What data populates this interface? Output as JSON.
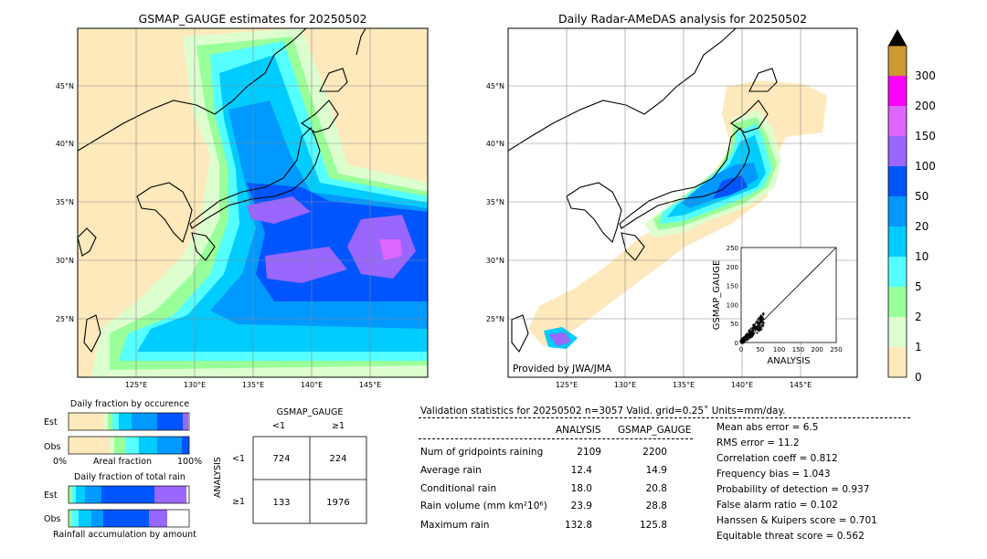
{
  "left_map": {
    "title": "GSMAP_GAUGE estimates for 20250502",
    "lat_ticks": [
      "45°N",
      "40°N",
      "35°N",
      "30°N",
      "25°N"
    ],
    "lon_ticks": [
      "125°E",
      "130°E",
      "135°E",
      "140°E",
      "145°E"
    ]
  },
  "right_map": {
    "title": "Daily Radar-AMeDAS analysis for 20250502",
    "lat_ticks": [
      "45°N",
      "40°N",
      "35°N",
      "30°N",
      "25°N"
    ],
    "lon_ticks": [
      "125°E",
      "130°E",
      "135°E",
      "140°E",
      "145°E"
    ],
    "credit": "Provided by JWA/JMA"
  },
  "colorbar": {
    "levels": [
      "0",
      "1",
      "2",
      "5",
      "10",
      "20",
      "50",
      "100",
      "150",
      "200",
      "300"
    ],
    "colors": [
      "#fde9bb",
      "#ddffd0",
      "#99ff99",
      "#55ffff",
      "#00ccff",
      "#0099ff",
      "#0055ff",
      "#9966ff",
      "#dd66ff",
      "#ff00ff",
      "#cc9933"
    ],
    "extend_color": "#000000"
  },
  "chart_data": [
    {
      "type": "scatter",
      "xlabel": "ANALYSIS",
      "ylabel": "GSMAP_GAUGE",
      "xlim": [
        0,
        250
      ],
      "ylim": [
        0,
        250
      ],
      "x_ticks": [
        "0",
        "25",
        "50",
        "75",
        "100",
        "125",
        "150",
        "175",
        "200",
        "225",
        "250"
      ],
      "y_ticks": [
        "0",
        "25",
        "50",
        "75",
        "100",
        "125",
        "150",
        "175",
        "200",
        "225",
        "250"
      ]
    },
    {
      "type": "bar",
      "title": "Daily fraction by occurence",
      "categories": [
        "Est",
        "Obs"
      ],
      "axis_left": "0%",
      "axis_middle": "Areal fraction",
      "axis_right": "100%"
    },
    {
      "type": "bar",
      "title": "Daily fraction of total rain",
      "categories": [
        "Est",
        "Obs"
      ],
      "xlabel": "Rainfall accumulation by amount"
    },
    {
      "type": "table",
      "title": "GSMAP_GAUGE",
      "col_labels": [
        "<1",
        "≥1"
      ],
      "row_title": "ANALYSIS",
      "row_labels": [
        "<1",
        "≥1"
      ],
      "cells": [
        [
          "724",
          "224"
        ],
        [
          "133",
          "1976"
        ]
      ]
    }
  ],
  "validation": {
    "header": "Validation statistics for 20250502  n=3057 Valid. grid=0.25˚ Units=mm/day.",
    "col_analysis": "ANALYSIS",
    "col_gsmap": "GSMAP_GAUGE",
    "rows": [
      {
        "label": "Num of gridpoints raining",
        "analysis": "2109",
        "gsmap": "2200"
      },
      {
        "label": "Average rain",
        "analysis": "12.4",
        "gsmap": "14.9"
      },
      {
        "label": "Conditional rain",
        "analysis": "18.0",
        "gsmap": "20.8"
      },
      {
        "label": "Rain volume (mm km²10⁶)",
        "analysis": "23.9",
        "gsmap": "28.8"
      },
      {
        "label": "Maximum rain",
        "analysis": "132.8",
        "gsmap": "125.8"
      }
    ],
    "scores": [
      "Mean abs error =    6.5",
      "RMS error =   11.2",
      "Correlation coeff =  0.812",
      "Frequency bias =  1.043",
      "Probability of detection =  0.937",
      "False alarm ratio =  0.102",
      "Hanssen & Kuipers score =  0.701",
      "Equitable threat score =  0.562"
    ]
  }
}
